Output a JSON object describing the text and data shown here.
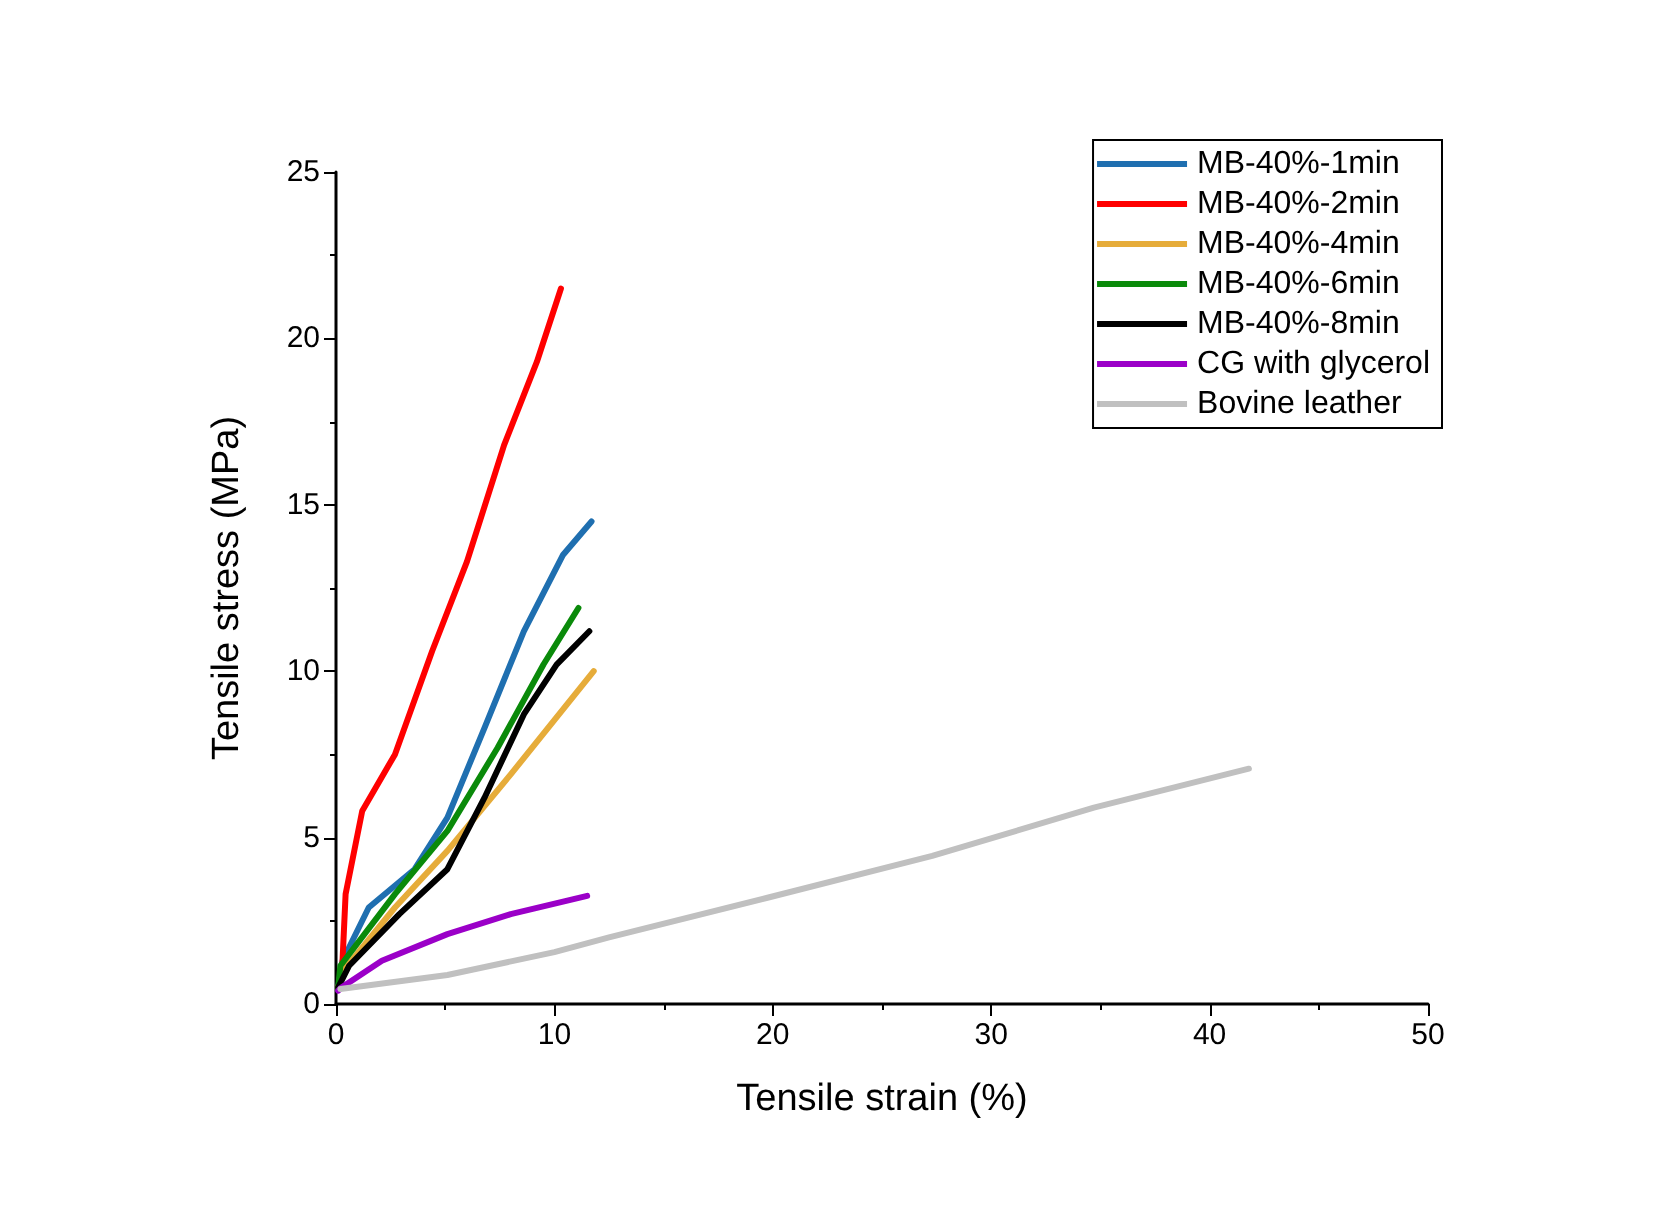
{
  "chart_data": {
    "type": "line",
    "xlabel": "Tensile strain (%)",
    "ylabel": "Tensile stress (MPa)",
    "xlim": [
      0,
      50
    ],
    "xticks": [
      0,
      10,
      20,
      30,
      40,
      50
    ],
    "ylim": [
      0,
      25
    ],
    "yticks": [
      0,
      5,
      10,
      15,
      20,
      25
    ],
    "grid": false,
    "legend": "top right",
    "marker": "none",
    "line_style": "solid",
    "series": [
      {
        "name": "MB-40%-1min",
        "color": "#1f6fb0",
        "x": [
          0.1,
          0.3,
          1.5,
          3.6,
          5.1,
          6.8,
          8.6,
          10.4,
          11.7
        ],
        "values": [
          0.5,
          1.3,
          2.9,
          4.05,
          5.6,
          8.3,
          11.2,
          13.5,
          14.5
        ]
      },
      {
        "name": "MB-40%-2min",
        "color": "#ff0000",
        "x": [
          0.1,
          0.27,
          0.44,
          1.2,
          2.7,
          4.4,
          6.0,
          7.7,
          9.2,
          10.3
        ],
        "values": [
          0.5,
          0.9,
          3.3,
          5.8,
          7.5,
          10.6,
          13.3,
          16.8,
          19.3,
          21.5
        ]
      },
      {
        "name": "MB-40%-4min",
        "color": "#e6ac3a",
        "x": [
          0.1,
          0.3,
          2.7,
          5.1,
          8.0,
          11.8
        ],
        "values": [
          0.5,
          0.97,
          2.9,
          4.6,
          6.9,
          10.0
        ]
      },
      {
        "name": "MB-40%-6min",
        "color": "#0a8a0a",
        "x": [
          0.1,
          0.2,
          2.7,
          5.1,
          7.4,
          9.5,
          11.1
        ],
        "values": [
          0.5,
          1.15,
          3.3,
          5.2,
          7.7,
          10.2,
          11.9
        ]
      },
      {
        "name": "MB-40%-8min",
        "color": "#000000",
        "x": [
          0.1,
          0.6,
          2.9,
          5.1,
          6.8,
          8.6,
          10.1,
          11.6
        ],
        "values": [
          0.5,
          1.15,
          2.7,
          4.05,
          6.2,
          8.7,
          10.2,
          11.2
        ]
      },
      {
        "name": "CG with glycerol",
        "color": "#9b00c8",
        "x": [
          0.1,
          0.2,
          2.1,
          5.1,
          8.0,
          11.5
        ],
        "values": [
          0.4,
          0.47,
          1.3,
          2.1,
          2.7,
          3.25
        ]
      },
      {
        "name": "Bovine leather",
        "color": "#c0c0c0",
        "x": [
          0.2,
          5.1,
          10,
          12.5,
          19.8,
          27.3,
          34.7,
          41.8
        ],
        "values": [
          0.45,
          0.87,
          1.56,
          2.0,
          3.2,
          4.45,
          5.9,
          7.07
        ]
      }
    ]
  }
}
